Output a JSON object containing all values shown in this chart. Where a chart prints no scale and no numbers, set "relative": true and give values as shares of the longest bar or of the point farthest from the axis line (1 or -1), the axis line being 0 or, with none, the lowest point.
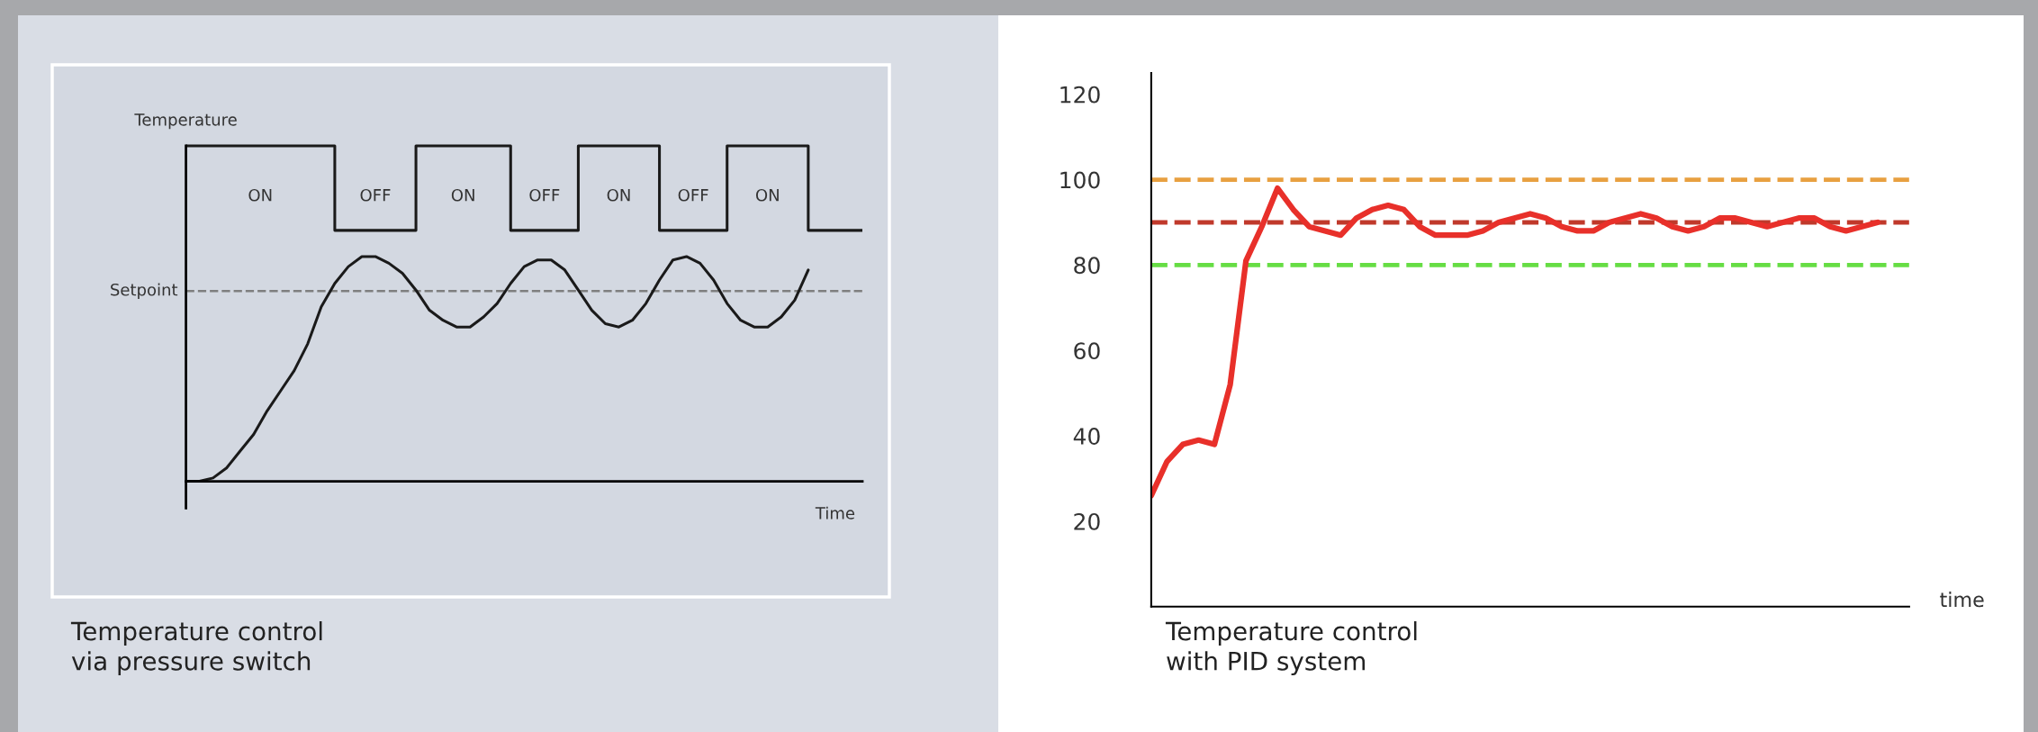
{
  "chart_data": [
    {
      "type": "line",
      "relative": true,
      "title": "Temperature control\nvia pressure switch",
      "xlabel": "Time",
      "ylabel": "Temperature",
      "grid": false,
      "marker": "none",
      "line_style": "solid",
      "categories": [
        null,
        null,
        null,
        null,
        null,
        null,
        null,
        null,
        null,
        null,
        null,
        null,
        null,
        null,
        null,
        null,
        null,
        null,
        null,
        null,
        null,
        null,
        null,
        null,
        null,
        null,
        null,
        null,
        null,
        null,
        null,
        null,
        null,
        null,
        null,
        null,
        null,
        null,
        null,
        null,
        null,
        null,
        null,
        null,
        null,
        null,
        null,
        null,
        null,
        null,
        null
      ],
      "series": [
        {
          "type": "line",
          "color": "#1a1a1a",
          "values": [
            0,
            0,
            0.01,
            0.04,
            0.09,
            0.14,
            0.21,
            0.27,
            0.33,
            0.41,
            0.52,
            0.59,
            0.64,
            0.67,
            0.67,
            0.65,
            0.62,
            0.57,
            0.51,
            0.48,
            0.46,
            0.46,
            0.49,
            0.53,
            0.59,
            0.64,
            0.66,
            0.66,
            0.63,
            0.57,
            0.51,
            0.47,
            0.46,
            0.48,
            0.53,
            0.6,
            0.66,
            0.67,
            0.65,
            0.6,
            0.53,
            0.48,
            0.46,
            0.46,
            0.49,
            0.54,
            0.63,
            null,
            null,
            null,
            null
          ]
        },
        {
          "type": "step",
          "color": "#1a1a1a",
          "values": [
            1,
            1,
            1,
            1,
            1,
            1,
            1,
            1,
            1,
            1,
            1,
            0.748,
            0.748,
            0.748,
            0.748,
            0.748,
            0.748,
            1,
            1,
            1,
            1,
            1,
            1,
            1,
            0.748,
            0.748,
            0.748,
            0.748,
            0.748,
            1,
            1,
            1,
            1,
            1,
            1,
            0.748,
            0.748,
            0.748,
            0.748,
            0.748,
            1,
            1,
            1,
            1,
            1,
            1,
            0.748,
            0.748,
            0.748,
            0.748,
            0.748
          ]
        }
      ],
      "ref_lines": [
        {
          "axis": "y",
          "value": 0.567,
          "label": "Setpoint",
          "color": "#7f7f7f",
          "line_style": "dashed"
        }
      ],
      "annotations": [
        "ON",
        "OFF",
        "ON",
        "OFF",
        "ON",
        "OFF",
        "ON"
      ]
    },
    {
      "type": "line",
      "title": "Temperature control\nwith PID system",
      "xlabel": "time",
      "grid": false,
      "marker": "none",
      "line_style": "solid",
      "ylim": [
        0,
        125
      ],
      "yticks": [
        20,
        40,
        60,
        80,
        100,
        120
      ],
      "categories": [
        null,
        null,
        null,
        null,
        null,
        null,
        null,
        null,
        null,
        null,
        null,
        null,
        null,
        null,
        null,
        null,
        null,
        null,
        null,
        null,
        null,
        null,
        null,
        null,
        null,
        null,
        null,
        null,
        null,
        null,
        null,
        null,
        null,
        null,
        null,
        null,
        null,
        null,
        null,
        null,
        null,
        null,
        null,
        null,
        null,
        null,
        null,
        null,
        null
      ],
      "series": [
        {
          "color": "#e8302a",
          "values": [
            26,
            34,
            38,
            39,
            38,
            52,
            81,
            89,
            98,
            93,
            89,
            88,
            87,
            91,
            93,
            94,
            93,
            89,
            87,
            87,
            87,
            88,
            90,
            91,
            92,
            91,
            89,
            88,
            88,
            90,
            91,
            92,
            91,
            89,
            88,
            89,
            91,
            91,
            90,
            89,
            90,
            91,
            91,
            89,
            88,
            89,
            90,
            null,
            null
          ]
        }
      ],
      "ref_lines": [
        {
          "axis": "y",
          "value": 100,
          "color": "#e8a040",
          "line_style": "dashed"
        },
        {
          "axis": "y",
          "value": 90,
          "color": "#c0392b",
          "line_style": "dashed"
        },
        {
          "axis": "y",
          "value": 80,
          "color": "#66dd44",
          "line_style": "dashed"
        }
      ]
    }
  ]
}
